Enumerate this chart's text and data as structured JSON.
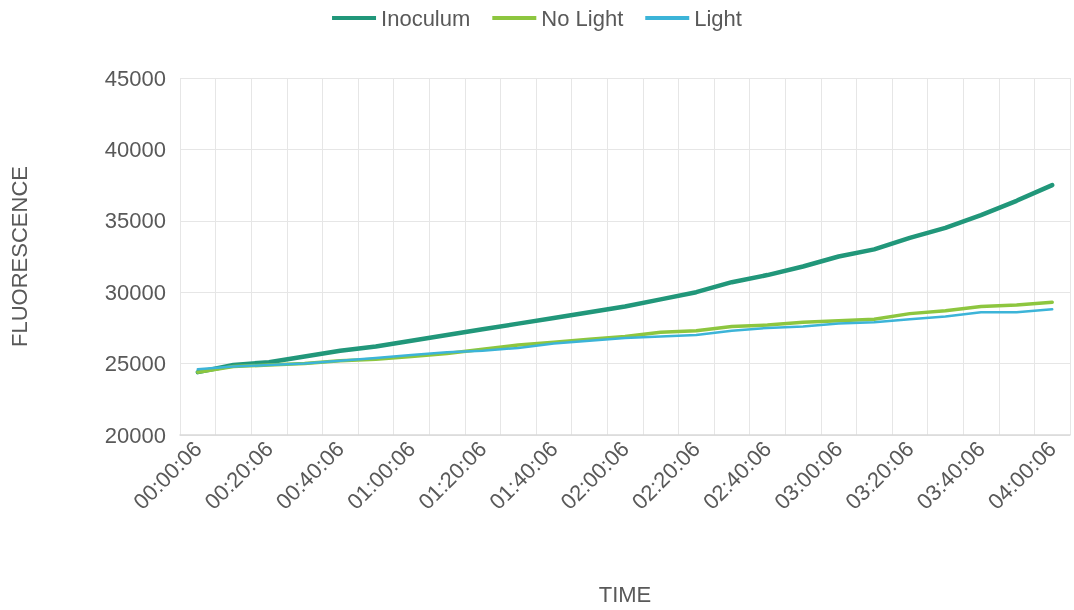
{
  "chart_data": {
    "type": "line",
    "xlabel": "TIME",
    "ylabel": "FLUORESCENCE",
    "categories": [
      "00:00:06",
      null,
      "00:20:06",
      null,
      "00:40:06",
      null,
      "01:00:06",
      null,
      "01:20:06",
      null,
      "01:40:06",
      null,
      "02:00:06",
      null,
      "02:20:06",
      null,
      "02:40:06",
      null,
      "03:00:06",
      null,
      "03:20:06",
      null,
      "03:40:06",
      null,
      "04:00:06"
    ],
    "series": [
      {
        "name": "Inoculum",
        "color": "#21977a",
        "values": [
          24400,
          24900,
          25100,
          25500,
          25900,
          26200,
          26600,
          27000,
          27400,
          27800,
          28200,
          28600,
          29000,
          29500,
          30000,
          30700,
          31200,
          31800,
          32500,
          33000,
          33800,
          34500,
          35400,
          36400,
          37500
        ]
      },
      {
        "name": "No Light",
        "color": "#8dc63f",
        "values": [
          24400,
          24800,
          24900,
          25000,
          25200,
          25300,
          25500,
          25700,
          26000,
          26300,
          26500,
          26700,
          26900,
          27200,
          27300,
          27600,
          27700,
          27900,
          28000,
          28100,
          28500,
          28700,
          29000,
          29100,
          29300
        ]
      },
      {
        "name": "Light",
        "color": "#3cb4d8",
        "values": [
          24600,
          24800,
          24900,
          25000,
          25200,
          25400,
          25600,
          25800,
          25900,
          26100,
          26400,
          26600,
          26800,
          26900,
          27000,
          27300,
          27500,
          27600,
          27800,
          27900,
          28100,
          28300,
          28600,
          28600,
          28800
        ]
      }
    ],
    "ylim": [
      20000,
      45000
    ],
    "yticks": [
      20000,
      25000,
      30000,
      35000,
      40000,
      45000
    ],
    "grid": true,
    "legend": "top",
    "marker": "none",
    "line_style": "solid"
  }
}
